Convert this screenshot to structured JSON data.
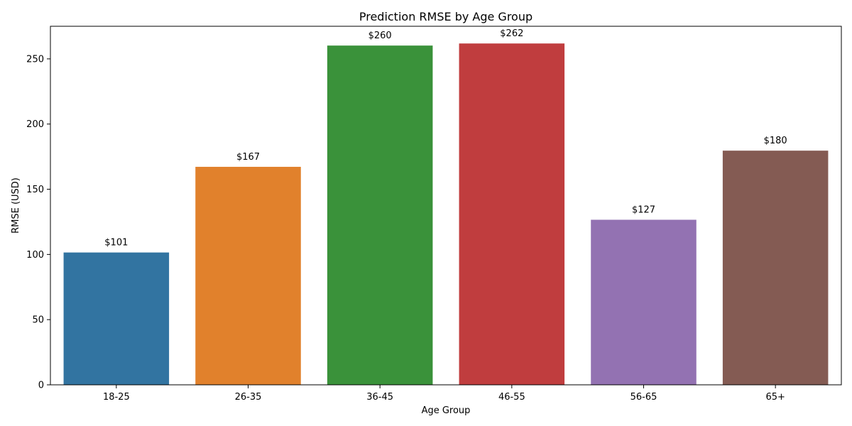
{
  "chart_data": {
    "type": "bar",
    "title": "Prediction RMSE by Age Group",
    "xlabel": "Age Group",
    "ylabel": "RMSE (USD)",
    "categories": [
      "18-25",
      "26-35",
      "36-45",
      "46-55",
      "56-65",
      "65+"
    ],
    "values": [
      101.5,
      167.2,
      260.2,
      261.8,
      126.6,
      179.6
    ],
    "value_labels": [
      "$101",
      "$167",
      "$260",
      "$262",
      "$127",
      "$180"
    ],
    "colors": [
      "#3274a1",
      "#e1812c",
      "#3a923a",
      "#c03d3e",
      "#9372b2",
      "#845b53"
    ],
    "ylim": [
      0,
      275
    ],
    "yticks": [
      0,
      50,
      100,
      150,
      200,
      250
    ],
    "grid": false,
    "legend": "none"
  }
}
